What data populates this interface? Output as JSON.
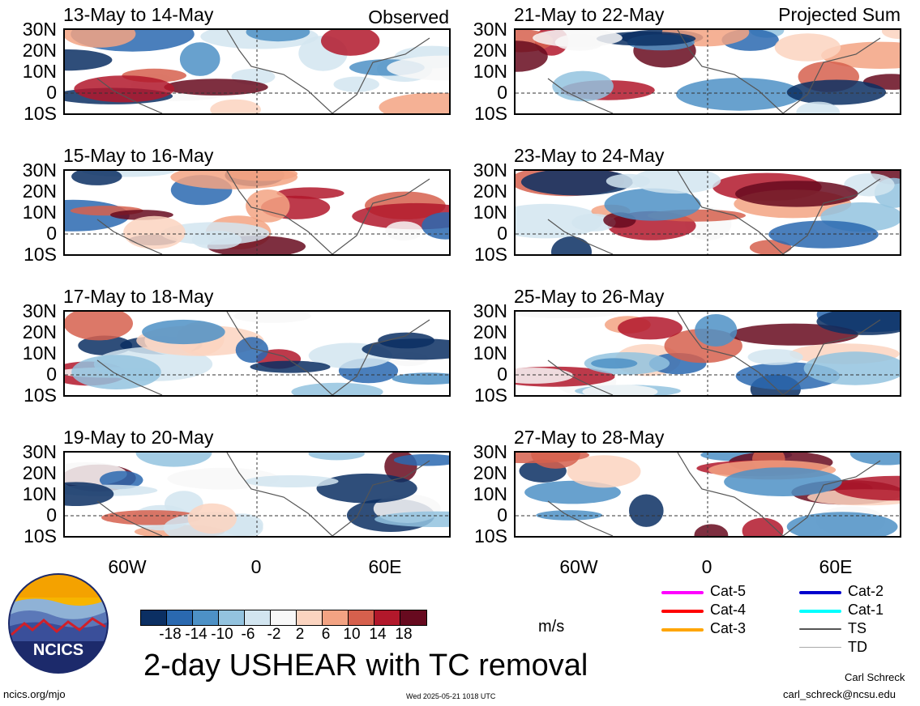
{
  "panels_left": [
    {
      "title": "13-May to 14-May",
      "tag": "Observed"
    },
    {
      "title": "15-May to 16-May",
      "tag": ""
    },
    {
      "title": "17-May to 18-May",
      "tag": ""
    },
    {
      "title": "19-May to 20-May",
      "tag": ""
    }
  ],
  "panels_right": [
    {
      "title": "21-May to 22-May",
      "tag": "Projected Sum"
    },
    {
      "title": "23-May to 24-May",
      "tag": ""
    },
    {
      "title": "25-May to 26-May",
      "tag": ""
    },
    {
      "title": "27-May to 28-May",
      "tag": ""
    }
  ],
  "lat_labels": [
    "30N",
    "20N",
    "10N",
    "0",
    "10S"
  ],
  "lon_labels": [
    "60W",
    "0",
    "60E"
  ],
  "colorbar": {
    "ticks": [
      "-18",
      "-14",
      "-10",
      "-6",
      "-2",
      "2",
      "6",
      "10",
      "14",
      "18"
    ],
    "colors": [
      "#0b2f63",
      "#2a69b0",
      "#4d91c6",
      "#93c3df",
      "#d2e5f0",
      "#f8f8f8",
      "#fbd4c0",
      "#f3a383",
      "#d6604d",
      "#b2182b",
      "#670a1f"
    ],
    "units": "m/s"
  },
  "title": "2-day USHEAR with TC removal",
  "legend": [
    {
      "label": "Cat-5",
      "color": "#ff00ff"
    },
    {
      "label": "Cat-4",
      "color": "#ff0000"
    },
    {
      "label": "Cat-3",
      "color": "#ffa500"
    },
    {
      "label": "Cat-2",
      "color": "#0000cd"
    },
    {
      "label": "Cat-1",
      "color": "#00ffff"
    },
    {
      "label": "TS",
      "color": "#555555"
    },
    {
      "label": "TD",
      "color": "#aaaaaa"
    }
  ],
  "logo_text": "NCICS",
  "footer": {
    "url": "ncics.org/mjo",
    "timestamp": "Wed 2025-05-21 1018 UTC",
    "author": "Carl Schreck",
    "email": "carl_schreck@ncsu.edu"
  }
}
